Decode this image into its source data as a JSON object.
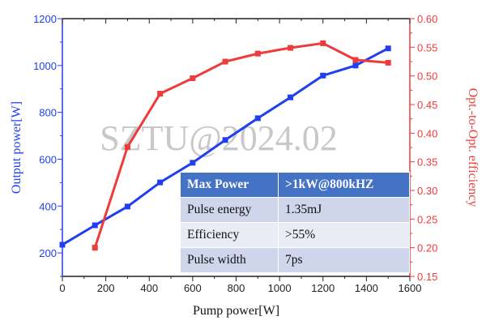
{
  "chart_data": {
    "type": "line",
    "xlabel": "Pump power[W]",
    "ylabel": "Output power[W]",
    "y2label": "Opt.-to-Opt. efficiency",
    "xlim": [
      0,
      1600
    ],
    "ylim": [
      100,
      1200
    ],
    "y2lim": [
      0.15,
      0.6
    ],
    "xticks": [
      "0",
      "200",
      "400",
      "600",
      "800",
      "1000",
      "1200",
      "1400",
      "1600"
    ],
    "yticks": [
      "200",
      "400",
      "600",
      "800",
      "1000",
      "1200"
    ],
    "y2ticks": [
      "0.15",
      "0.20",
      "0.25",
      "0.30",
      "0.35",
      "0.40",
      "0.45",
      "0.50",
      "0.55",
      "0.60"
    ],
    "watermark": "SZTU@2024.02",
    "series": [
      {
        "name": "Output power",
        "axis": "left",
        "color": "#1f3ff0",
        "x": [
          0,
          150,
          300,
          450,
          600,
          750,
          900,
          1050,
          1200,
          1350,
          1500
        ],
        "y": [
          235,
          318,
          398,
          501,
          585,
          682,
          775,
          864,
          957,
          1000,
          1073
        ]
      },
      {
        "name": "Opt.-to-Opt. efficiency",
        "axis": "right",
        "color": "#ee3b3b",
        "x": [
          150,
          300,
          450,
          600,
          750,
          900,
          1050,
          1200,
          1350,
          1500
        ],
        "y": [
          0.2,
          0.376,
          0.469,
          0.496,
          0.525,
          0.539,
          0.549,
          0.557,
          0.528,
          0.523
        ]
      }
    ]
  },
  "table": {
    "rows": [
      [
        "Max Power",
        ">1kW@800kHZ"
      ],
      [
        "Pulse energy",
        "1.35mJ"
      ],
      [
        "Efficiency",
        ">55%"
      ],
      [
        "Pulse width",
        "7ps"
      ]
    ]
  }
}
